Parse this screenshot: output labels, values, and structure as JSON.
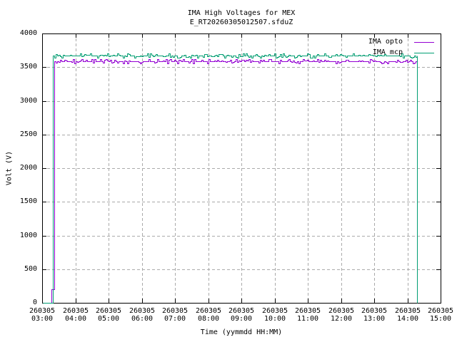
{
  "chart_data": {
    "type": "line",
    "title": "IMA High Voltages for MEX",
    "subtitle": "E_RT20260305012507.sfduZ",
    "xlabel": "Time (yymmdd HH:MM)",
    "ylabel": "Volt (V)",
    "ylim": [
      0,
      4000
    ],
    "ytick_step": 500,
    "x_range_hours": [
      3,
      15
    ],
    "x_ticks": [
      {
        "date": "260305",
        "time": "03:00"
      },
      {
        "date": "260305",
        "time": "04:00"
      },
      {
        "date": "260305",
        "time": "05:00"
      },
      {
        "date": "260305",
        "time": "06:00"
      },
      {
        "date": "260305",
        "time": "07:00"
      },
      {
        "date": "260305",
        "time": "08:00"
      },
      {
        "date": "260305",
        "time": "09:00"
      },
      {
        "date": "260305",
        "time": "10:00"
      },
      {
        "date": "260305",
        "time": "11:00"
      },
      {
        "date": "260305",
        "time": "12:00"
      },
      {
        "date": "260305",
        "time": "13:00"
      },
      {
        "date": "260305",
        "time": "14:00"
      },
      {
        "date": "260305",
        "time": "15:00"
      }
    ],
    "grid": true,
    "legend_position": "top-right-inside",
    "series": [
      {
        "name": "IMA opto",
        "color": "#9400D3",
        "flat_value_volts": 3590,
        "noise_volts": 30,
        "points_hours_volts": [
          [
            3.02,
            0
          ],
          [
            3.28,
            0
          ],
          [
            3.28,
            200
          ],
          [
            3.366,
            200
          ],
          [
            3.366,
            3590
          ],
          [
            14.28,
            3590
          ],
          [
            14.28,
            0
          ]
        ]
      },
      {
        "name": "IMA mcp",
        "color": "#009E73",
        "flat_value_volts": 3670,
        "noise_volts": 30,
        "points_hours_volts": [
          [
            3.02,
            0
          ],
          [
            3.323,
            0
          ],
          [
            3.323,
            3670
          ],
          [
            14.3,
            3670
          ],
          [
            14.3,
            0
          ]
        ]
      }
    ],
    "colors": {
      "background": "#ffffff",
      "border": "#000000",
      "grid": "#aaaaaa",
      "text": "#000000"
    }
  }
}
